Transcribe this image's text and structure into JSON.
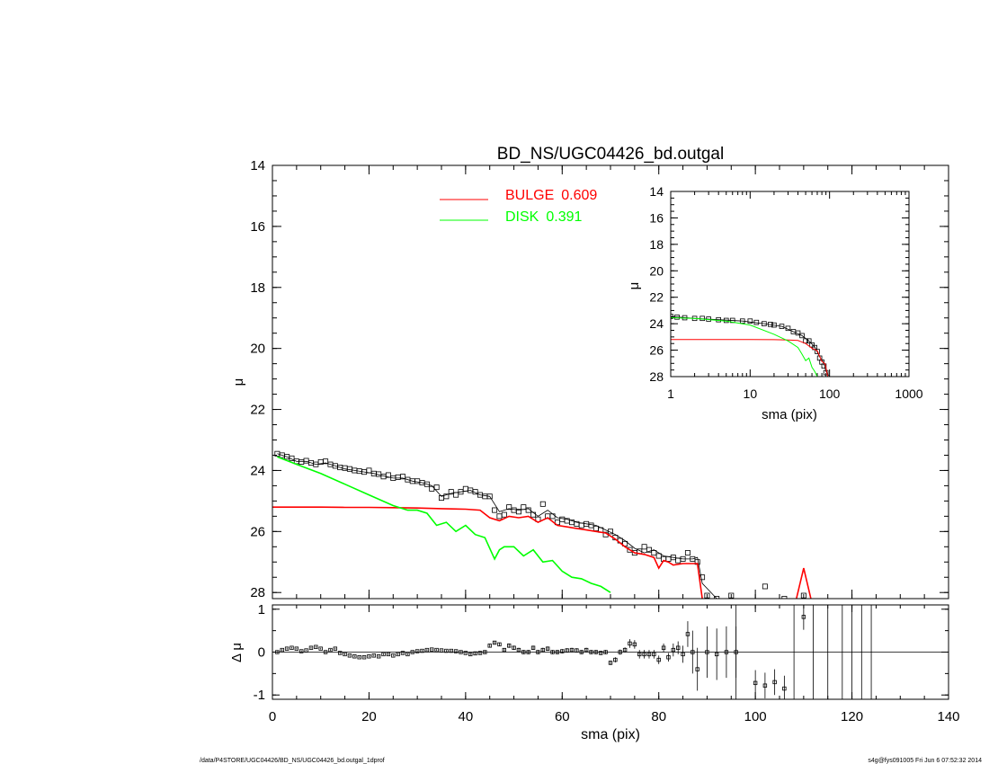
{
  "chart_data": [
    {
      "id": "main",
      "type": "line",
      "title": "BD_NS/UGC04426_bd.outgal",
      "ylabel": "μ",
      "xlim": [
        0,
        140
      ],
      "ylim": [
        28.2,
        14
      ],
      "yticks": [
        14,
        16,
        18,
        20,
        22,
        24,
        26,
        28
      ],
      "xticks": [
        0,
        20,
        40,
        60,
        80,
        100,
        120,
        140
      ],
      "legend": [
        {
          "label": "BULGE",
          "value": "0.609",
          "color": "#ff0000"
        },
        {
          "label": "DISK",
          "value": "0.391",
          "color": "#00ff00"
        }
      ],
      "series": [
        {
          "name": "data",
          "kind": "markers",
          "color": "#000000",
          "x": [
            1,
            2,
            3,
            4,
            5,
            6,
            7,
            8,
            9,
            10,
            11,
            12,
            13,
            14,
            15,
            16,
            17,
            18,
            19,
            20,
            21,
            22,
            23,
            24,
            25,
            26,
            27,
            28,
            29,
            30,
            31,
            32,
            33,
            34,
            35,
            36,
            37,
            38,
            39,
            40,
            41,
            42,
            43,
            44,
            45,
            46,
            47,
            48,
            49,
            50,
            51,
            52,
            53,
            54,
            55,
            56,
            57,
            58,
            59,
            60,
            61,
            62,
            63,
            64,
            65,
            66,
            67,
            68,
            69,
            70,
            71,
            72,
            73,
            74,
            75,
            76,
            77,
            78,
            79,
            80,
            81,
            82,
            83,
            84,
            85,
            86,
            87,
            88,
            89,
            90,
            92,
            95,
            98,
            102,
            106,
            110
          ],
          "y": [
            23.45,
            23.5,
            23.55,
            23.6,
            23.7,
            23.72,
            23.68,
            23.75,
            23.8,
            23.72,
            23.7,
            23.8,
            23.85,
            23.9,
            23.92,
            23.95,
            24.0,
            24.02,
            24.05,
            24.0,
            24.1,
            24.12,
            24.2,
            24.15,
            24.25,
            24.22,
            24.2,
            24.3,
            24.35,
            24.35,
            24.4,
            24.45,
            24.6,
            24.55,
            24.9,
            24.85,
            24.7,
            24.8,
            24.7,
            24.6,
            24.65,
            24.7,
            24.8,
            24.85,
            24.85,
            25.3,
            25.5,
            25.45,
            25.2,
            25.3,
            25.35,
            25.2,
            25.3,
            25.45,
            25.6,
            25.1,
            25.5,
            25.5,
            25.7,
            25.6,
            25.65,
            25.7,
            25.75,
            25.8,
            25.75,
            25.8,
            25.9,
            25.95,
            26.1,
            26.0,
            26.2,
            26.3,
            26.4,
            26.6,
            26.7,
            26.65,
            26.5,
            26.6,
            26.7,
            26.8,
            26.9,
            26.9,
            26.85,
            26.95,
            26.9,
            26.7,
            26.9,
            27.0,
            27.5,
            28.1,
            28.2,
            28.1,
            28.3,
            27.8,
            28.2,
            28.1
          ]
        },
        {
          "name": "model",
          "kind": "line",
          "color": "#000000",
          "x": [
            1,
            3,
            5,
            7,
            9,
            11,
            13,
            15,
            17,
            19,
            21,
            23,
            25,
            27,
            29,
            31,
            33,
            35,
            37,
            39,
            41,
            43,
            45,
            47,
            49,
            51,
            53,
            55,
            57,
            59,
            61,
            63,
            65,
            67,
            69,
            71,
            73,
            75,
            77,
            79,
            81,
            83,
            85,
            87,
            88,
            89,
            92,
            95,
            98,
            100
          ],
          "y": [
            23.45,
            23.55,
            23.7,
            23.7,
            23.8,
            23.75,
            23.85,
            23.95,
            24.0,
            24.05,
            24.1,
            24.18,
            24.25,
            24.25,
            24.35,
            24.4,
            24.5,
            24.85,
            24.75,
            24.7,
            24.65,
            24.8,
            24.85,
            25.35,
            25.25,
            25.3,
            25.25,
            25.5,
            25.3,
            25.55,
            25.6,
            25.7,
            25.75,
            25.8,
            25.95,
            26.1,
            26.3,
            26.55,
            26.7,
            26.6,
            26.8,
            26.85,
            26.9,
            26.9,
            26.85,
            27.7,
            28.2,
            28.3,
            28.3,
            28.3
          ]
        },
        {
          "name": "bulge",
          "kind": "line",
          "color": "#ff0000",
          "x": [
            0,
            5,
            10,
            15,
            20,
            25,
            30,
            35,
            40,
            43,
            45,
            47,
            49,
            51,
            53,
            55,
            57,
            59,
            61,
            63,
            65,
            67,
            69,
            71,
            73,
            75,
            77,
            79,
            80,
            81,
            82,
            83,
            85,
            87,
            88,
            89
          ],
          "y": [
            25.2,
            25.2,
            25.2,
            25.21,
            25.21,
            25.22,
            25.23,
            25.25,
            25.27,
            25.3,
            25.55,
            25.65,
            25.5,
            25.55,
            25.5,
            25.7,
            25.55,
            25.8,
            25.85,
            25.9,
            25.95,
            26.0,
            26.05,
            26.25,
            26.5,
            26.7,
            26.75,
            26.85,
            27.2,
            26.95,
            27.0,
            27.1,
            27.05,
            27.05,
            27.05,
            28.2
          ]
        },
        {
          "name": "disk",
          "kind": "line",
          "color": "#00ff00",
          "x": [
            1,
            5,
            10,
            15,
            20,
            25,
            28,
            30,
            32,
            34,
            36,
            38,
            40,
            42,
            44,
            46,
            47,
            48,
            50,
            52,
            54,
            56,
            58,
            60,
            62,
            64,
            66,
            68,
            70
          ],
          "y": [
            23.55,
            23.8,
            24.1,
            24.45,
            24.8,
            25.15,
            25.3,
            25.3,
            25.4,
            25.8,
            25.7,
            26.0,
            25.8,
            26.1,
            26.2,
            26.9,
            26.6,
            26.5,
            26.5,
            26.8,
            26.6,
            27.0,
            26.95,
            27.3,
            27.5,
            27.55,
            27.7,
            27.8,
            28.0
          ]
        }
      ]
    },
    {
      "id": "inset",
      "type": "line",
      "ylabel": "μ",
      "xlabel": "sma (pix)",
      "xscale": "log",
      "xlim": [
        1,
        1000
      ],
      "ylim": [
        28,
        14
      ],
      "yticks": [
        14,
        16,
        18,
        20,
        22,
        24,
        26,
        28
      ],
      "xticks": [
        1,
        10,
        100,
        1000
      ],
      "series": [
        {
          "name": "data",
          "kind": "markers",
          "color": "#000000",
          "x": [
            1,
            1.2,
            1.5,
            2,
            2.5,
            3,
            4,
            5,
            6,
            8,
            10,
            12,
            15,
            18,
            20,
            25,
            30,
            35,
            40,
            45,
            50,
            55,
            60,
            65,
            70,
            75,
            80,
            85,
            90
          ],
          "y": [
            23.45,
            23.5,
            23.55,
            23.6,
            23.6,
            23.65,
            23.7,
            23.75,
            23.75,
            23.8,
            23.8,
            23.9,
            24.0,
            24.05,
            24.1,
            24.2,
            24.35,
            24.6,
            24.7,
            24.9,
            25.3,
            25.3,
            25.6,
            25.8,
            26.1,
            26.6,
            26.9,
            27.2,
            27.7
          ]
        },
        {
          "name": "model",
          "kind": "line",
          "color": "#000000",
          "x": [
            1,
            2,
            4,
            8,
            15,
            25,
            35,
            45,
            55,
            65,
            75,
            85,
            90,
            100
          ],
          "y": [
            23.45,
            23.6,
            23.7,
            23.8,
            24.0,
            24.2,
            24.6,
            24.9,
            25.3,
            25.75,
            26.5,
            27.0,
            27.6,
            28.0
          ]
        },
        {
          "name": "bulge",
          "kind": "line",
          "color": "#ff0000",
          "x": [
            1,
            5,
            10,
            20,
            30,
            40,
            50,
            60,
            70,
            80,
            88,
            95
          ],
          "y": [
            25.2,
            25.2,
            25.2,
            25.21,
            25.23,
            25.27,
            25.5,
            25.85,
            26.05,
            26.85,
            27.05,
            28.0
          ]
        },
        {
          "name": "disk",
          "kind": "line",
          "color": "#00ff00",
          "x": [
            1,
            2,
            5,
            10,
            20,
            30,
            40,
            45,
            50,
            55,
            60,
            65,
            70
          ],
          "y": [
            23.55,
            23.6,
            23.8,
            24.1,
            24.8,
            25.3,
            25.8,
            26.3,
            26.8,
            26.6,
            27.3,
            27.6,
            28.0
          ]
        }
      ]
    },
    {
      "id": "residuals",
      "type": "scatter",
      "ylabel": "Δ μ",
      "xlabel": "sma (pix)",
      "xlim": [
        0,
        140
      ],
      "ylim": [
        -1.1,
        1.1
      ],
      "yticks": [
        -1,
        0,
        1
      ],
      "xticks": [
        0,
        20,
        40,
        60,
        80,
        100,
        120,
        140
      ],
      "series": [
        {
          "name": "residuals",
          "kind": "errorbars",
          "color": "#000000",
          "x": [
            1,
            2,
            3,
            4,
            5,
            6,
            7,
            8,
            9,
            10,
            11,
            12,
            13,
            14,
            15,
            16,
            17,
            18,
            19,
            20,
            21,
            22,
            23,
            24,
            25,
            26,
            27,
            28,
            29,
            30,
            31,
            32,
            33,
            34,
            35,
            36,
            37,
            38,
            39,
            40,
            41,
            42,
            43,
            44,
            45,
            46,
            47,
            48,
            49,
            50,
            51,
            52,
            53,
            54,
            55,
            56,
            57,
            58,
            59,
            60,
            61,
            62,
            63,
            64,
            65,
            66,
            67,
            68,
            69,
            70,
            71,
            72,
            73,
            74,
            75,
            76,
            77,
            78,
            79,
            80,
            81,
            82,
            83,
            84,
            85,
            86,
            87,
            88,
            90,
            92,
            94,
            96,
            100,
            102,
            104,
            106,
            110
          ],
          "y": [
            0.0,
            0.05,
            0.08,
            0.1,
            0.08,
            0.02,
            0.04,
            0.1,
            0.12,
            0.08,
            0.0,
            0.05,
            0.08,
            -0.02,
            -0.05,
            -0.08,
            -0.1,
            -0.12,
            -0.12,
            -0.1,
            -0.08,
            -0.1,
            -0.05,
            -0.05,
            -0.08,
            -0.05,
            -0.02,
            -0.05,
            0.0,
            0.02,
            0.03,
            0.05,
            0.06,
            0.05,
            0.04,
            0.03,
            0.03,
            0.02,
            0.0,
            -0.02,
            -0.05,
            -0.03,
            -0.02,
            0.0,
            0.15,
            0.22,
            0.18,
            0.05,
            0.15,
            0.1,
            0.05,
            0.0,
            0.0,
            0.1,
            0.0,
            0.05,
            0.08,
            0.0,
            0.0,
            0.02,
            0.04,
            0.05,
            0.04,
            0.0,
            0.05,
            0.0,
            0.0,
            -0.02,
            0.0,
            -0.25,
            -0.18,
            0.0,
            0.05,
            0.2,
            0.18,
            -0.05,
            -0.05,
            -0.05,
            -0.05,
            -0.18,
            0.1,
            -0.12,
            0.05,
            0.1,
            -0.05,
            0.42,
            0.0,
            -0.4,
            0.0,
            -0.05,
            0.0,
            0.0,
            -0.72,
            -0.78,
            -0.7,
            -0.85,
            0.82
          ],
          "err": [
            0.02,
            0.02,
            0.02,
            0.02,
            0.02,
            0.02,
            0.02,
            0.02,
            0.02,
            0.02,
            0.02,
            0.02,
            0.02,
            0.02,
            0.02,
            0.02,
            0.02,
            0.02,
            0.02,
            0.02,
            0.02,
            0.02,
            0.02,
            0.02,
            0.02,
            0.02,
            0.02,
            0.02,
            0.02,
            0.02,
            0.02,
            0.02,
            0.02,
            0.02,
            0.02,
            0.02,
            0.02,
            0.02,
            0.02,
            0.02,
            0.03,
            0.03,
            0.03,
            0.03,
            0.04,
            0.04,
            0.04,
            0.04,
            0.05,
            0.05,
            0.05,
            0.05,
            0.05,
            0.05,
            0.05,
            0.05,
            0.05,
            0.05,
            0.05,
            0.05,
            0.05,
            0.05,
            0.05,
            0.05,
            0.05,
            0.05,
            0.05,
            0.05,
            0.05,
            0.05,
            0.06,
            0.06,
            0.06,
            0.1,
            0.1,
            0.1,
            0.1,
            0.1,
            0.1,
            0.1,
            0.1,
            0.1,
            0.15,
            0.15,
            0.2,
            0.3,
            0.5,
            0.5,
            0.6,
            0.6,
            0.6,
            0.6,
            0.3,
            0.3,
            0.3,
            0.3,
            0.3
          ]
        },
        {
          "name": "unbounded",
          "kind": "vlines",
          "color": "#000000",
          "x": [
            96,
            108,
            112,
            115,
            118,
            120,
            122,
            124
          ]
        }
      ]
    }
  ],
  "footer": {
    "path": "/data/P4STORE/UGC04426/BD_NS/UGC04426_bd.outgal_1dprof",
    "stamp": "s4g@fys091005  Fri Jun  6 07:52:32 2014"
  }
}
